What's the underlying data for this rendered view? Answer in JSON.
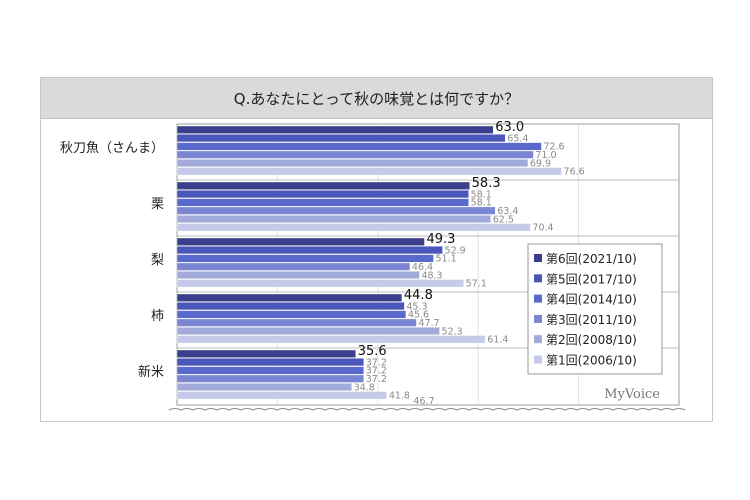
{
  "chart_data": {
    "type": "bar",
    "orientation": "horizontal",
    "title": "Q.あなたにとって秋の味覚とは何ですか？",
    "categories": [
      "秋刀魚（さんま）",
      "栗",
      "梨",
      "柿",
      "新米"
    ],
    "series": [
      {
        "name": "第6回(2021/10)",
        "color": "#3b3f8c",
        "values": [
          63.0,
          58.3,
          49.3,
          44.8,
          35.6
        ]
      },
      {
        "name": "第5回(2017/10)",
        "color": "#4a56b8",
        "values": [
          65.4,
          58.1,
          52.9,
          45.3,
          37.2
        ]
      },
      {
        "name": "第4回(2014/10)",
        "color": "#5a69cc",
        "values": [
          72.6,
          58.1,
          51.1,
          45.6,
          37.2
        ]
      },
      {
        "name": "第3回(2011/10)",
        "color": "#7a86d4",
        "values": [
          71.0,
          63.4,
          46.4,
          47.7,
          37.2
        ]
      },
      {
        "name": "第2回(2008/10)",
        "color": "#a2aadc",
        "values": [
          69.9,
          62.5,
          48.3,
          52.3,
          34.8
        ]
      },
      {
        "name": "第1回(2006/10)",
        "color": "#c6cbea",
        "values": [
          76.6,
          70.4,
          57.1,
          61.4,
          41.8
        ]
      }
    ],
    "extra_labels": [
      "46.7"
    ],
    "xlim": [
      0,
      100
    ],
    "grid": true,
    "legend": "right",
    "brand": "MyVoice"
  }
}
